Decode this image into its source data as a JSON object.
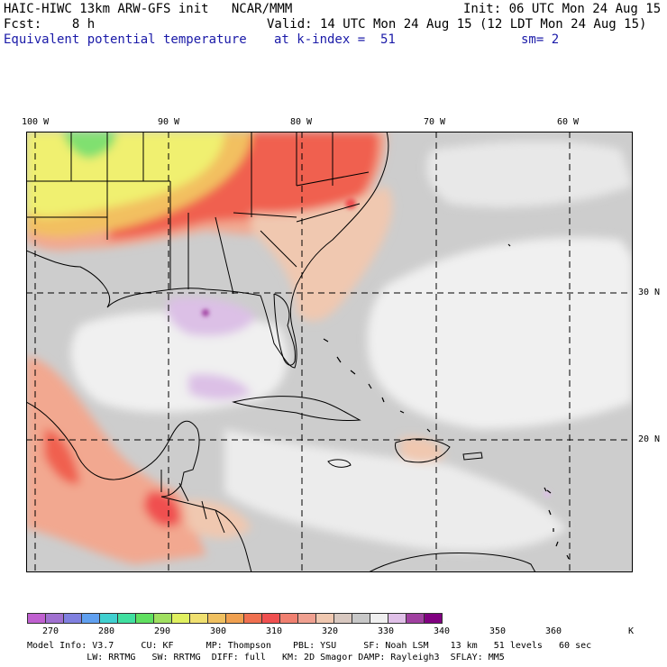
{
  "header": {
    "line1_left": "HAIC-HIWC 13km ARW-GFS init   NCAR/MMM",
    "line1_right": "Init: 06 UTC Mon 24 Aug 15",
    "line2_left": "Fcst:    8 h",
    "line2_right": "Valid: 14 UTC Mon 24 Aug 15 (12 LDT Mon 24 Aug 15)",
    "line3_left": "Equivalent potential temperature",
    "line3_mid": "at k-index =  51",
    "line3_right": "sm= 2"
  },
  "axes": {
    "lon_labels": [
      "100 W",
      "90 W",
      "80 W",
      "70 W",
      "60 W"
    ],
    "lat_labels": [
      "30 N",
      "20 N"
    ]
  },
  "colorbar": {
    "colors": [
      "#c060d0",
      "#a070d0",
      "#8080e0",
      "#60a0f0",
      "#40d0d0",
      "#40e0a0",
      "#60e060",
      "#a0e060",
      "#e0f060",
      "#f0e070",
      "#f0c060",
      "#f0a050",
      "#f07050",
      "#f05050",
      "#f08070",
      "#f0a090",
      "#f0c8b0",
      "#d8c8c0",
      "#c8c8c8",
      "#f0f0f0",
      "#e0c0e8",
      "#a040a0",
      "#800080"
    ],
    "labels": [
      "270",
      "280",
      "290",
      "300",
      "310",
      "320",
      "330",
      "340",
      "350",
      "360"
    ],
    "unit": "K"
  },
  "footer": {
    "line1": "Model Info: V3.7     CU: KF      MP: Thompson    PBL: YSU     SF: Noah LSM    13 km   51 levels   60 sec",
    "line2": "           LW: RRTMG   SW: RRTMG  DIFF: full   KM: 2D Smagor DAMP: Rayleigh3  SFLAY: MM5"
  }
}
